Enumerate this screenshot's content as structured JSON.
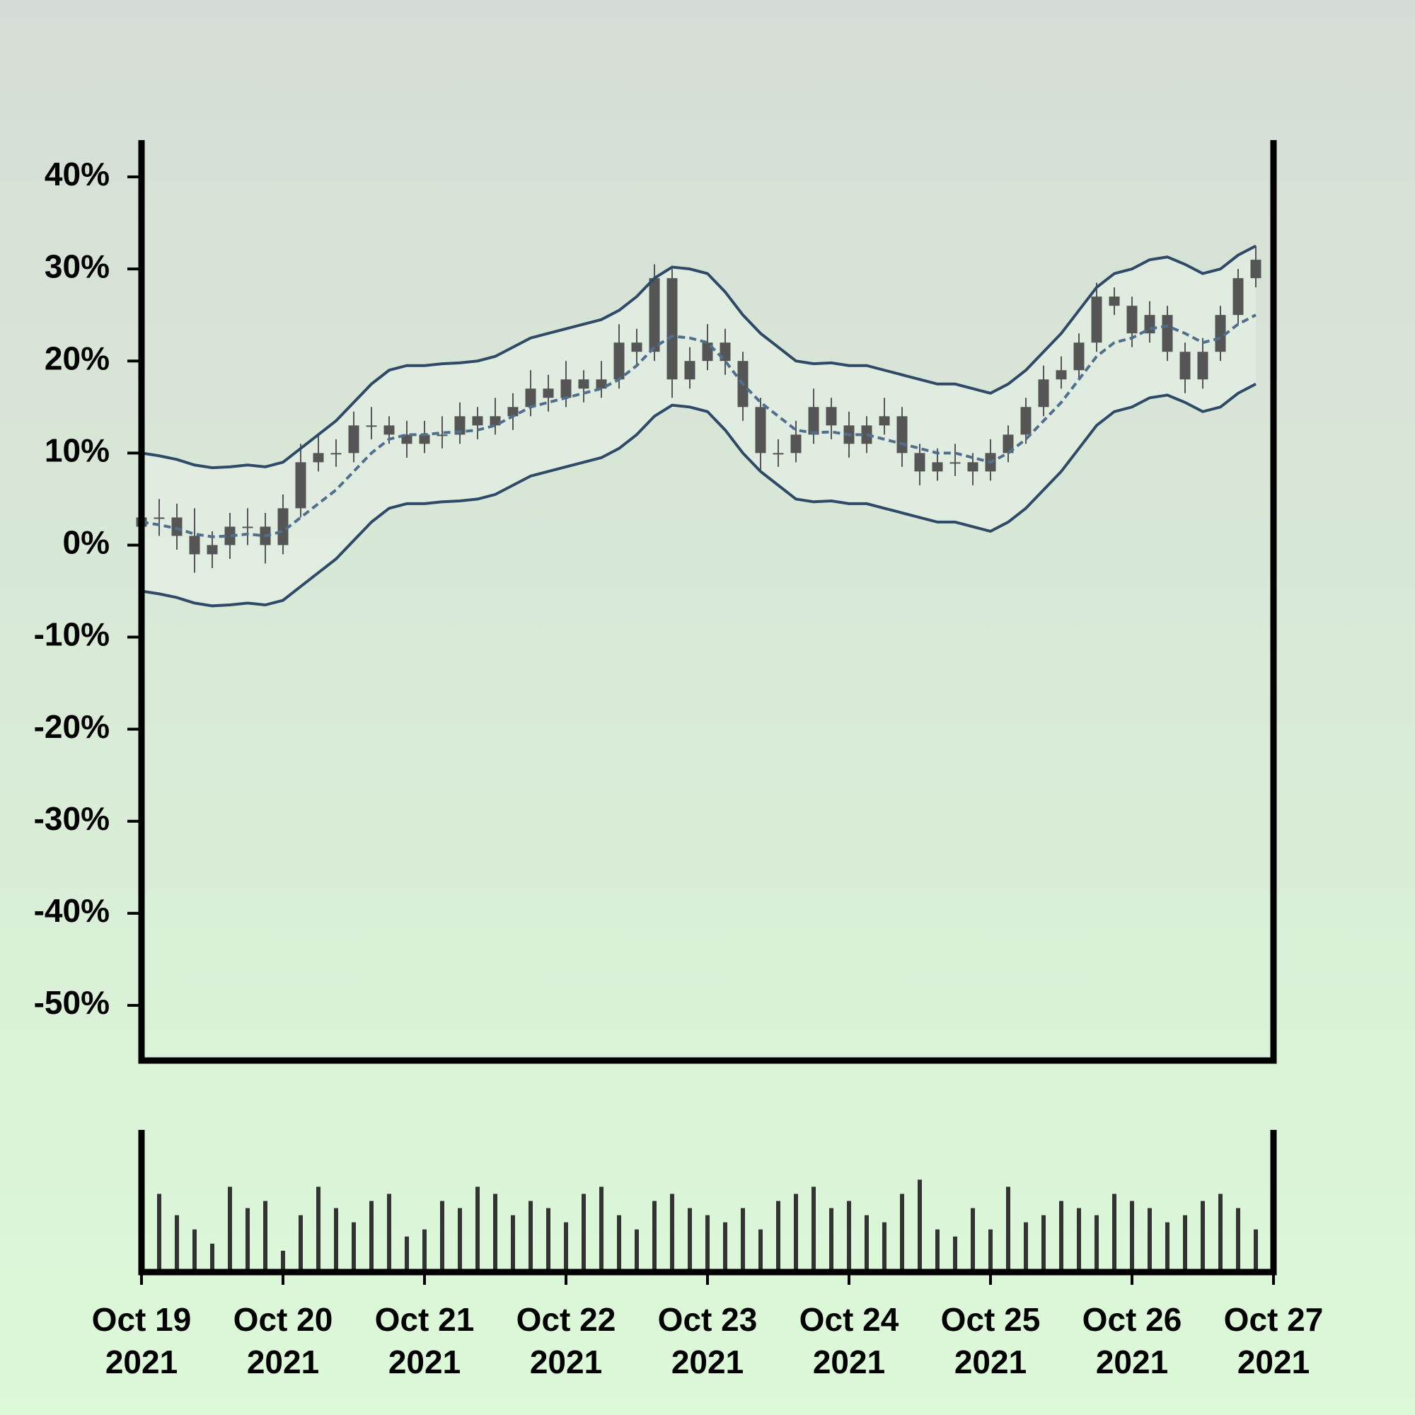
{
  "chart_data": {
    "type": "candlestick",
    "x": [
      0,
      0.125,
      0.25,
      0.375,
      0.5,
      0.625,
      0.75,
      0.875,
      1,
      1.125,
      1.25,
      1.375,
      1.5,
      1.625,
      1.75,
      1.875,
      2,
      2.125,
      2.25,
      2.375,
      2.5,
      2.625,
      2.75,
      2.875,
      3,
      3.125,
      3.25,
      3.375,
      3.5,
      3.625,
      3.75,
      3.875,
      4,
      4.125,
      4.25,
      4.375,
      4.5,
      4.625,
      4.75,
      4.875,
      5,
      5.125,
      5.25,
      5.375,
      5.5,
      5.625,
      5.75,
      5.875,
      6,
      6.125,
      6.25,
      6.375,
      6.5,
      6.625,
      6.75,
      6.875,
      7,
      7.125,
      7.25,
      7.375,
      7.5,
      7.625,
      7.75,
      7.875
    ],
    "open": [
      2,
      3,
      3,
      1,
      -1,
      0,
      2,
      2,
      0,
      4,
      9,
      10,
      10,
      13,
      13,
      12,
      11,
      12,
      12,
      14,
      13,
      14,
      15,
      17,
      16,
      18,
      17,
      18,
      22,
      21,
      29,
      18,
      20,
      22,
      20,
      15,
      10,
      10,
      12,
      15,
      13,
      11,
      13,
      14,
      10,
      8,
      9,
      9,
      8,
      10,
      12,
      15,
      18,
      19,
      22,
      27,
      26,
      23,
      25,
      21,
      18,
      21,
      25,
      29
    ],
    "high": [
      5,
      5,
      4.5,
      4,
      1.5,
      3.5,
      4,
      3.5,
      5.5,
      11,
      12,
      11.5,
      14.5,
      15,
      14,
      13.5,
      13.5,
      14,
      15.5,
      15,
      16,
      16.5,
      19,
      18.5,
      20,
      19,
      20,
      24,
      23.5,
      30.5,
      30,
      21.5,
      24,
      23.5,
      21,
      16,
      11.5,
      13.5,
      17,
      16,
      14.5,
      14,
      16,
      15,
      11,
      10.5,
      11,
      10,
      11.5,
      13,
      16,
      19.5,
      20.5,
      23,
      28.5,
      28,
      27,
      26.5,
      26,
      22,
      22.5,
      26,
      30,
      32.5
    ],
    "low": [
      0.5,
      1,
      -0.5,
      -3,
      -2.5,
      -1.5,
      0,
      -2,
      -1,
      3,
      8,
      8.5,
      9,
      11.5,
      11,
      9.5,
      10,
      10.5,
      11,
      11.5,
      12,
      12.5,
      14,
      14.5,
      15,
      15.5,
      16,
      17,
      19.5,
      20,
      16,
      17,
      19,
      18.5,
      13.5,
      8,
      8.5,
      9,
      11,
      11.5,
      9.5,
      10,
      12,
      8.5,
      6.5,
      7,
      7.5,
      6.5,
      7,
      9,
      11,
      14,
      17,
      18,
      21,
      25,
      21.5,
      22,
      20,
      16.5,
      17,
      20,
      24,
      28
    ],
    "close": [
      3,
      3,
      1,
      -1,
      0,
      2,
      2,
      0,
      4,
      9,
      10,
      10,
      13,
      13,
      12,
      11,
      12,
      12,
      14,
      13,
      14,
      15,
      17,
      16,
      18,
      17,
      18,
      22,
      21,
      29,
      18,
      20,
      22,
      20,
      15,
      10,
      10,
      12,
      15,
      13,
      11,
      13,
      14,
      10,
      8,
      9,
      9,
      8,
      10,
      12,
      15,
      18,
      19,
      22,
      27,
      26,
      23,
      25,
      21,
      18,
      21,
      25,
      29,
      31
    ],
    "upper": [
      10,
      9.7,
      9.3,
      8.7,
      8.4,
      8.5,
      8.7,
      8.5,
      9,
      10.5,
      12,
      13.5,
      15.5,
      17.5,
      19,
      19.5,
      19.5,
      19.7,
      19.8,
      20,
      20.5,
      21.5,
      22.5,
      23,
      23.5,
      24,
      24.5,
      25.5,
      27,
      29,
      30.2,
      30,
      29.5,
      27.5,
      25,
      23,
      21.5,
      20,
      19.7,
      19.8,
      19.5,
      19.5,
      19,
      18.5,
      18,
      17.5,
      17.5,
      17,
      16.5,
      17.5,
      19,
      21,
      23,
      25.5,
      28,
      29.5,
      30,
      31,
      31.3,
      30.5,
      29.5,
      30,
      31.5,
      32.5
    ],
    "middle": [
      2.5,
      2.2,
      1.8,
      1.2,
      0.9,
      1,
      1.2,
      1,
      1.5,
      3,
      4.5,
      6,
      8,
      10,
      11.5,
      12,
      12,
      12.2,
      12.3,
      12.5,
      13,
      14,
      15,
      15.5,
      16,
      16.5,
      17,
      18,
      19.5,
      21.5,
      22.7,
      22.5,
      22,
      20,
      17.5,
      15.5,
      14,
      12.5,
      12.2,
      12.3,
      12,
      12,
      11.5,
      11,
      10.5,
      10,
      10,
      9.5,
      9,
      10,
      11.5,
      13.5,
      15.5,
      18,
      20.5,
      22,
      22.5,
      23.5,
      23.8,
      23,
      22,
      22.5,
      24,
      25
    ],
    "lower": [
      -5,
      -5.3,
      -5.7,
      -6.3,
      -6.6,
      -6.5,
      -6.3,
      -6.5,
      -6,
      -4.5,
      -3,
      -1.5,
      0.5,
      2.5,
      4,
      4.5,
      4.5,
      4.7,
      4.8,
      5,
      5.5,
      6.5,
      7.5,
      8,
      8.5,
      9,
      9.5,
      10.5,
      12,
      14,
      15.2,
      15,
      14.5,
      12.5,
      10,
      8,
      6.5,
      5,
      4.7,
      4.8,
      4.5,
      4.5,
      4,
      3.5,
      3,
      2.5,
      2.5,
      2,
      1.5,
      2.5,
      4,
      6,
      8,
      10.5,
      13,
      14.5,
      15,
      16,
      16.3,
      15.5,
      14.5,
      15,
      16.5,
      17.5
    ],
    "volume": [
      70,
      55,
      40,
      30,
      20,
      60,
      45,
      50,
      15,
      40,
      60,
      45,
      35,
      50,
      55,
      25,
      30,
      50,
      45,
      60,
      55,
      40,
      50,
      45,
      35,
      55,
      60,
      40,
      30,
      50,
      55,
      45,
      40,
      35,
      45,
      30,
      50,
      55,
      60,
      45,
      50,
      40,
      35,
      55,
      65,
      30,
      25,
      45,
      30,
      60,
      35,
      40,
      50,
      45,
      40,
      55,
      50,
      45,
      35,
      40,
      50,
      55,
      45,
      30
    ],
    "candle_color": "#555555",
    "band_color": "#2e4a66",
    "middle_color": "#4f6f8d",
    "band_fill": "#e2ede2",
    "volume_color": "#333333",
    "xlim": [
      0,
      8
    ],
    "xticks": [
      {
        "value": 0,
        "label": "Oct 19\n2021"
      },
      {
        "value": 1,
        "label": "Oct 20\n2021"
      },
      {
        "value": 2,
        "label": "Oct 21\n2021"
      },
      {
        "value": 3,
        "label": "Oct 22\n2021"
      },
      {
        "value": 4,
        "label": "Oct 23\n2021"
      },
      {
        "value": 5,
        "label": "Oct 24\n2021"
      },
      {
        "value": 6,
        "label": "Oct 25\n2021"
      },
      {
        "value": 7,
        "label": "Oct 26\n2021"
      },
      {
        "value": 8,
        "label": "Oct 27\n2021"
      }
    ],
    "ylim": [
      -56,
      44
    ],
    "yticks": [
      {
        "value": 40,
        "label": "40%"
      },
      {
        "value": 30,
        "label": "30%"
      },
      {
        "value": 20,
        "label": "20%"
      },
      {
        "value": 10,
        "label": "10%"
      },
      {
        "value": 0,
        "label": "0%"
      },
      {
        "value": -10,
        "label": "-10%"
      },
      {
        "value": -20,
        "label": "-20%"
      },
      {
        "value": -30,
        "label": "-30%"
      },
      {
        "value": -40,
        "label": "-40%"
      },
      {
        "value": -50,
        "label": "-50%"
      }
    ],
    "vlim": [
      0,
      100
    ]
  }
}
